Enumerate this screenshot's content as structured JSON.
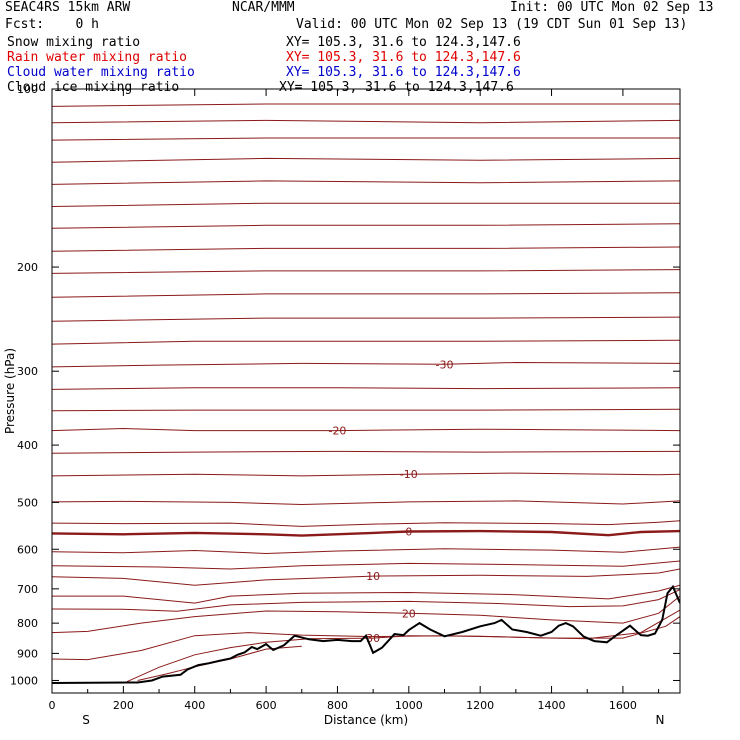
{
  "header": {
    "model": "SEAC4RS 15km ARW",
    "org": "NCAR/MMM",
    "init": "Init: 00 UTC Mon 02 Sep 13",
    "fcst": "Fcst:    0 h",
    "valid": "Valid: 00 UTC Mon 02 Sep 13 (19 CDT Sun 01 Sep 13)",
    "fields": [
      {
        "name": "Snow mixing ratio",
        "xy": "XY= 105.3, 31.6 to 124.3,147.6",
        "color": "#000000"
      },
      {
        "name": "Rain water mixing ratio",
        "xy": "XY= 105.3, 31.6 to 124.3,147.6",
        "color": "#e00000"
      },
      {
        "name": "Cloud water mixing ratio",
        "xy": "XY= 105.3, 31.6 to 124.3,147.6",
        "color": "#0000cc"
      },
      {
        "name": "Cloud ice mixing ratio",
        "xy": "XY= 105.3, 31.6 to 124.3,147.6",
        "color": "#000000"
      }
    ]
  },
  "chart_data": {
    "type": "line",
    "xlabel": "Distance (km)",
    "ylabel": "Pressure (hPa)",
    "xlim": [
      0,
      1760
    ],
    "ylim": [
      1050,
      100
    ],
    "y_scale": "log",
    "x_ticks": [
      0,
      200,
      400,
      600,
      800,
      1000,
      1200,
      1400,
      1600
    ],
    "y_ticks": [
      100,
      200,
      300,
      400,
      500,
      600,
      700,
      800,
      900,
      1000
    ],
    "x_end_labels": {
      "left": "S",
      "right": "N"
    },
    "grid": false,
    "contour_color": "#8b1a1a",
    "terrain_color": "#000000",
    "contours": [
      {
        "label": "",
        "points": [
          [
            0,
            107
          ],
          [
            600,
            106
          ],
          [
            1200,
            106
          ],
          [
            1760,
            106
          ]
        ]
      },
      {
        "label": "",
        "points": [
          [
            0,
            114
          ],
          [
            600,
            113
          ],
          [
            1200,
            114
          ],
          [
            1760,
            113
          ]
        ]
      },
      {
        "label": "",
        "points": [
          [
            0,
            122
          ],
          [
            600,
            121
          ],
          [
            1200,
            121
          ],
          [
            1760,
            121
          ]
        ]
      },
      {
        "label": "",
        "points": [
          [
            0,
            133
          ],
          [
            600,
            131
          ],
          [
            1200,
            132
          ],
          [
            1760,
            131
          ]
        ]
      },
      {
        "label": "",
        "points": [
          [
            0,
            145
          ],
          [
            600,
            143
          ],
          [
            1200,
            144
          ],
          [
            1760,
            143
          ]
        ]
      },
      {
        "label": "",
        "points": [
          [
            0,
            158
          ],
          [
            600,
            156
          ],
          [
            1200,
            156
          ],
          [
            1760,
            156
          ]
        ]
      },
      {
        "label": "",
        "points": [
          [
            0,
            172
          ],
          [
            600,
            170
          ],
          [
            1200,
            170
          ],
          [
            1760,
            169
          ]
        ]
      },
      {
        "label": "",
        "points": [
          [
            0,
            188
          ],
          [
            600,
            186
          ],
          [
            1200,
            186
          ],
          [
            1760,
            185
          ]
        ]
      },
      {
        "label": "",
        "points": [
          [
            0,
            205
          ],
          [
            600,
            203
          ],
          [
            1200,
            203
          ],
          [
            1760,
            202
          ]
        ]
      },
      {
        "label": "",
        "points": [
          [
            0,
            225
          ],
          [
            600,
            222
          ],
          [
            1200,
            222
          ],
          [
            1760,
            221
          ]
        ]
      },
      {
        "label": "",
        "points": [
          [
            0,
            247
          ],
          [
            600,
            244
          ],
          [
            1200,
            244
          ],
          [
            1760,
            243
          ]
        ]
      },
      {
        "label": "",
        "points": [
          [
            0,
            270
          ],
          [
            400,
            267
          ],
          [
            800,
            267
          ],
          [
            1200,
            267
          ],
          [
            1760,
            266
          ]
        ]
      },
      {
        "label": "-30",
        "points": [
          [
            0,
            295
          ],
          [
            300,
            293
          ],
          [
            700,
            291
          ],
          [
            1100,
            292
          ],
          [
            1300,
            290
          ],
          [
            1760,
            291
          ]
        ]
      },
      {
        "label": "",
        "points": [
          [
            0,
            322
          ],
          [
            400,
            320
          ],
          [
            800,
            320
          ],
          [
            1200,
            321
          ],
          [
            1760,
            320
          ]
        ]
      },
      {
        "label": "",
        "points": [
          [
            0,
            350
          ],
          [
            400,
            349
          ],
          [
            800,
            349
          ],
          [
            1200,
            349
          ],
          [
            1760,
            348
          ]
        ]
      },
      {
        "label": "-20",
        "points": [
          [
            0,
            378
          ],
          [
            200,
            375
          ],
          [
            400,
            378
          ],
          [
            800,
            378
          ],
          [
            1200,
            376
          ],
          [
            1760,
            378
          ]
        ]
      },
      {
        "label": "",
        "points": [
          [
            0,
            413
          ],
          [
            400,
            411
          ],
          [
            800,
            410
          ],
          [
            1200,
            411
          ],
          [
            1760,
            410
          ]
        ]
      },
      {
        "label": "-10",
        "points": [
          [
            0,
            451
          ],
          [
            400,
            448
          ],
          [
            700,
            451
          ],
          [
            1000,
            448
          ],
          [
            1300,
            446
          ],
          [
            1700,
            449
          ],
          [
            1760,
            448
          ]
        ]
      },
      {
        "label": "",
        "points": [
          [
            0,
            499
          ],
          [
            200,
            498
          ],
          [
            500,
            500
          ],
          [
            700,
            504
          ],
          [
            1000,
            499
          ],
          [
            1300,
            497
          ],
          [
            1600,
            503
          ],
          [
            1760,
            497
          ]
        ]
      },
      {
        "label": "",
        "points": [
          [
            0,
            542
          ],
          [
            200,
            543
          ],
          [
            500,
            542
          ],
          [
            700,
            549
          ],
          [
            900,
            544
          ],
          [
            1100,
            541
          ],
          [
            1400,
            543
          ],
          [
            1560,
            545
          ],
          [
            1700,
            540
          ],
          [
            1760,
            537
          ]
        ]
      },
      {
        "label": "0",
        "bold": true,
        "points": [
          [
            0,
            564
          ],
          [
            200,
            566
          ],
          [
            400,
            563
          ],
          [
            600,
            566
          ],
          [
            700,
            569
          ],
          [
            900,
            563
          ],
          [
            1000,
            560
          ],
          [
            1200,
            559
          ],
          [
            1400,
            561
          ],
          [
            1560,
            568
          ],
          [
            1650,
            561
          ],
          [
            1760,
            559
          ]
        ]
      },
      {
        "label": "",
        "points": [
          [
            0,
            606
          ],
          [
            200,
            608
          ],
          [
            400,
            603
          ],
          [
            600,
            610
          ],
          [
            800,
            604
          ],
          [
            1100,
            599
          ],
          [
            1400,
            602
          ],
          [
            1600,
            607
          ],
          [
            1760,
            595
          ]
        ]
      },
      {
        "label": "",
        "points": [
          [
            0,
            640
          ],
          [
            300,
            643
          ],
          [
            500,
            648
          ],
          [
            700,
            640
          ],
          [
            1000,
            634
          ],
          [
            1300,
            637
          ],
          [
            1600,
            641
          ],
          [
            1760,
            628
          ]
        ]
      },
      {
        "label": "10",
        "points": [
          [
            0,
            668
          ],
          [
            200,
            672
          ],
          [
            400,
            690
          ],
          [
            600,
            676
          ],
          [
            900,
            666
          ],
          [
            1200,
            664
          ],
          [
            1500,
            667
          ],
          [
            1700,
            658
          ],
          [
            1760,
            648
          ]
        ]
      },
      {
        "label": "",
        "points": [
          [
            0,
            720
          ],
          [
            200,
            720
          ],
          [
            400,
            740
          ],
          [
            500,
            720
          ],
          [
            700,
            712
          ],
          [
            1000,
            710
          ],
          [
            1300,
            716
          ],
          [
            1560,
            728
          ],
          [
            1700,
            706
          ],
          [
            1760,
            690
          ]
        ]
      },
      {
        "label": "",
        "points": [
          [
            0,
            757
          ],
          [
            200,
            758
          ],
          [
            350,
            764
          ],
          [
            500,
            745
          ],
          [
            700,
            738
          ],
          [
            1000,
            735
          ],
          [
            1250,
            741
          ],
          [
            1450,
            750
          ],
          [
            1600,
            748
          ],
          [
            1700,
            730
          ],
          [
            1760,
            702
          ]
        ]
      },
      {
        "label": "20",
        "points": [
          [
            0,
            830
          ],
          [
            100,
            826
          ],
          [
            250,
            800
          ],
          [
            400,
            780
          ],
          [
            600,
            763
          ],
          [
            800,
            765
          ],
          [
            1000,
            770
          ],
          [
            1200,
            776
          ],
          [
            1400,
            790
          ],
          [
            1600,
            800
          ],
          [
            1700,
            770
          ],
          [
            1760,
            720
          ]
        ]
      },
      {
        "label": "",
        "points": [
          [
            0,
            920
          ],
          [
            100,
            922
          ],
          [
            250,
            890
          ],
          [
            400,
            840
          ],
          [
            550,
            830
          ],
          [
            700,
            838
          ],
          [
            900,
            843
          ],
          [
            1100,
            840
          ],
          [
            1300,
            845
          ],
          [
            1500,
            850
          ],
          [
            1650,
            830
          ],
          [
            1760,
            760
          ]
        ]
      },
      {
        "label": "30",
        "points": [
          [
            210,
            1005
          ],
          [
            300,
            950
          ],
          [
            400,
            905
          ],
          [
            500,
            880
          ],
          [
            600,
            862
          ],
          [
            720,
            850
          ],
          [
            900,
            848
          ],
          [
            1000,
            840
          ],
          [
            1200,
            842
          ],
          [
            1400,
            848
          ],
          [
            1600,
            848
          ],
          [
            1720,
            810
          ],
          [
            1760,
            780
          ]
        ]
      },
      {
        "label": "",
        "points": [
          [
            240,
            1000
          ],
          [
            320,
            975
          ],
          [
            400,
            948
          ],
          [
            500,
            920
          ],
          [
            600,
            885
          ],
          [
            700,
            875
          ]
        ]
      }
    ],
    "terrain": [
      [
        0,
        1010
      ],
      [
        240,
        1008
      ],
      [
        280,
        1000
      ],
      [
        310,
        985
      ],
      [
        360,
        978
      ],
      [
        380,
        958
      ],
      [
        410,
        942
      ],
      [
        440,
        935
      ],
      [
        470,
        926
      ],
      [
        500,
        918
      ],
      [
        520,
        905
      ],
      [
        540,
        896
      ],
      [
        560,
        878
      ],
      [
        575,
        885
      ],
      [
        600,
        868
      ],
      [
        620,
        888
      ],
      [
        650,
        872
      ],
      [
        680,
        840
      ],
      [
        720,
        852
      ],
      [
        760,
        858
      ],
      [
        800,
        854
      ],
      [
        840,
        858
      ],
      [
        865,
        858
      ],
      [
        880,
        840
      ],
      [
        900,
        898
      ],
      [
        925,
        880
      ],
      [
        960,
        835
      ],
      [
        985,
        838
      ],
      [
        1000,
        822
      ],
      [
        1030,
        800
      ],
      [
        1060,
        820
      ],
      [
        1100,
        842
      ],
      [
        1150,
        828
      ],
      [
        1200,
        810
      ],
      [
        1240,
        800
      ],
      [
        1260,
        790
      ],
      [
        1290,
        820
      ],
      [
        1330,
        828
      ],
      [
        1370,
        840
      ],
      [
        1400,
        828
      ],
      [
        1420,
        808
      ],
      [
        1440,
        800
      ],
      [
        1460,
        810
      ],
      [
        1490,
        843
      ],
      [
        1520,
        858
      ],
      [
        1555,
        862
      ],
      [
        1580,
        840
      ],
      [
        1620,
        808
      ],
      [
        1650,
        838
      ],
      [
        1670,
        840
      ],
      [
        1690,
        833
      ],
      [
        1710,
        790
      ],
      [
        1725,
        712
      ],
      [
        1740,
        694
      ],
      [
        1760,
        740
      ]
    ]
  }
}
